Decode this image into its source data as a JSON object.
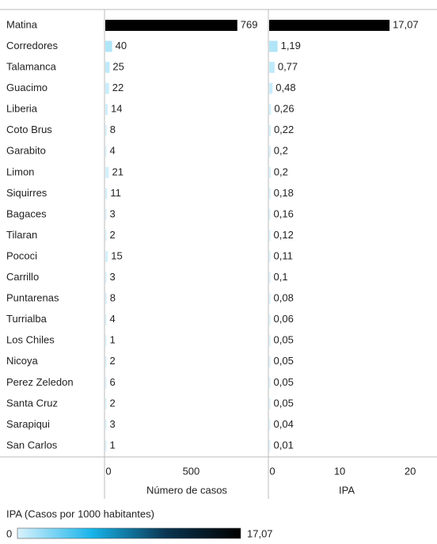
{
  "chart_data": {
    "type": "bar",
    "orientation": "horizontal",
    "categories": [
      "Matina",
      "Corredores",
      "Talamanca",
      "Guacimo",
      "Liberia",
      "Coto Brus",
      "Garabito",
      "Limon",
      "Siquirres",
      "Bagaces",
      "Tilaran",
      "Pococi",
      "Carrillo",
      "Puntarenas",
      "Turrialba",
      "Los Chiles",
      "Nicoya",
      "Perez Zeledon",
      "Santa Cruz",
      "Sarapiqui",
      "San Carlos"
    ],
    "series": [
      {
        "name": "Número de casos",
        "values": [
          769,
          40,
          25,
          22,
          14,
          8,
          4,
          21,
          11,
          3,
          2,
          15,
          3,
          8,
          4,
          1,
          2,
          6,
          2,
          3,
          1
        ],
        "xlim": [
          0,
          950
        ],
        "xticks": [
          0,
          500
        ]
      },
      {
        "name": "IPA",
        "values": [
          17.07,
          1.19,
          0.77,
          0.48,
          0.26,
          0.22,
          0.2,
          0.2,
          0.18,
          0.16,
          0.12,
          0.11,
          0.1,
          0.08,
          0.06,
          0.05,
          0.05,
          0.05,
          0.05,
          0.04,
          0.01
        ],
        "value_labels": [
          "17,07",
          "1,19",
          "0,77",
          "0,48",
          "0,26",
          "0,22",
          "0,2",
          "0,2",
          "0,18",
          "0,16",
          "0,12",
          "0,11",
          "0,1",
          "0,08",
          "0,06",
          "0,05",
          "0,05",
          "0,05",
          "0,05",
          "0,04",
          "0,01"
        ],
        "xlim": [
          0,
          23.8
        ],
        "xticks": [
          0,
          10,
          20
        ]
      }
    ],
    "colorbar": {
      "title": "IPA (Casos por 1000 habitantes)",
      "ticks": [
        0,
        {
          "value": 17.07,
          "label": "17,07"
        }
      ],
      "colors": [
        "#d9f2fc",
        "#18b4ea",
        "#0a3550",
        "#000000"
      ]
    }
  }
}
